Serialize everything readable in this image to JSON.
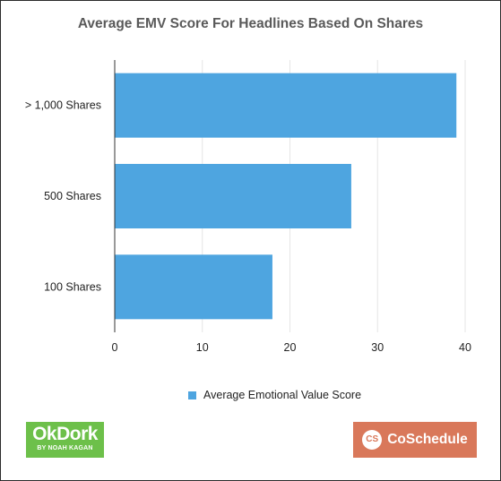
{
  "chart_data": {
    "type": "bar",
    "orientation": "horizontal",
    "title": "Average EMV Score For Headlines Based On Shares",
    "categories": [
      "> 1,000 Shares",
      "500 Shares",
      "100 Shares"
    ],
    "series": [
      {
        "name": "Average Emotional Value Score",
        "values": [
          39,
          27,
          18
        ],
        "color": "#4ea5e0"
      }
    ],
    "xlim": [
      0,
      40
    ],
    "xticks": [
      "0",
      "10",
      "20",
      "30",
      "40"
    ],
    "grid": true,
    "legend_position": "bottom"
  },
  "logos": {
    "okdork": {
      "main": "OkDork",
      "sub": "BY NOAH KAGAN",
      "color": "#6dc04a"
    },
    "coschedule": {
      "icon_text": "CS",
      "text": "CoSchedule",
      "color": "#d9785a"
    }
  }
}
